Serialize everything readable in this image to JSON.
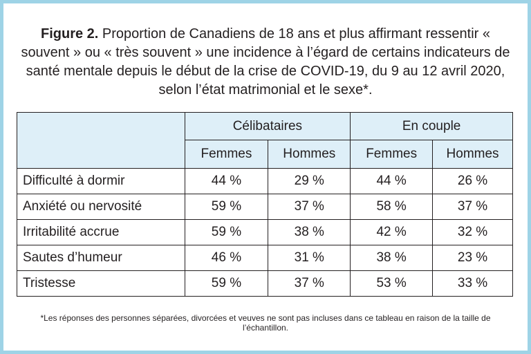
{
  "figure": {
    "label": "Figure 2.",
    "title": "Proportion de Canadiens de 18 ans et plus affirmant ressentir « souvent » ou « très souvent » une incidence à l’égard de certains indicateurs de santé mentale depuis le début de la crise de COVID-19, du 9 au 12 avril 2020, selon l’état matrimonial et le sexe*."
  },
  "table": {
    "groups": [
      "Célibataires",
      "En couple"
    ],
    "subheaders": [
      "Femmes",
      "Hommes",
      "Femmes",
      "Hommes"
    ],
    "rows": [
      {
        "label": "Difficulté à dormir",
        "values": [
          "44 %",
          "29 %",
          "44 %",
          "26 %"
        ]
      },
      {
        "label": "Anxiété ou nervosité",
        "values": [
          "59 %",
          "37 %",
          "58 %",
          "37 %"
        ]
      },
      {
        "label": "Irritabilité accrue",
        "values": [
          "59 %",
          "38 %",
          "42 %",
          "32 %"
        ]
      },
      {
        "label": "Sautes d’humeur",
        "values": [
          "46 %",
          "31 %",
          "38 %",
          "23 %"
        ]
      },
      {
        "label": "Tristesse",
        "values": [
          "59 %",
          "37 %",
          "53 %",
          "33 %"
        ]
      }
    ]
  },
  "footnote": "*Les réponses des personnes séparées, divorcées et veuves ne sont pas incluses dans ce tableau en raison de la taille de l’échantillon.",
  "colors": {
    "border": "#9ed3e6",
    "header_bg": "#deeff8",
    "text": "#231f20"
  }
}
